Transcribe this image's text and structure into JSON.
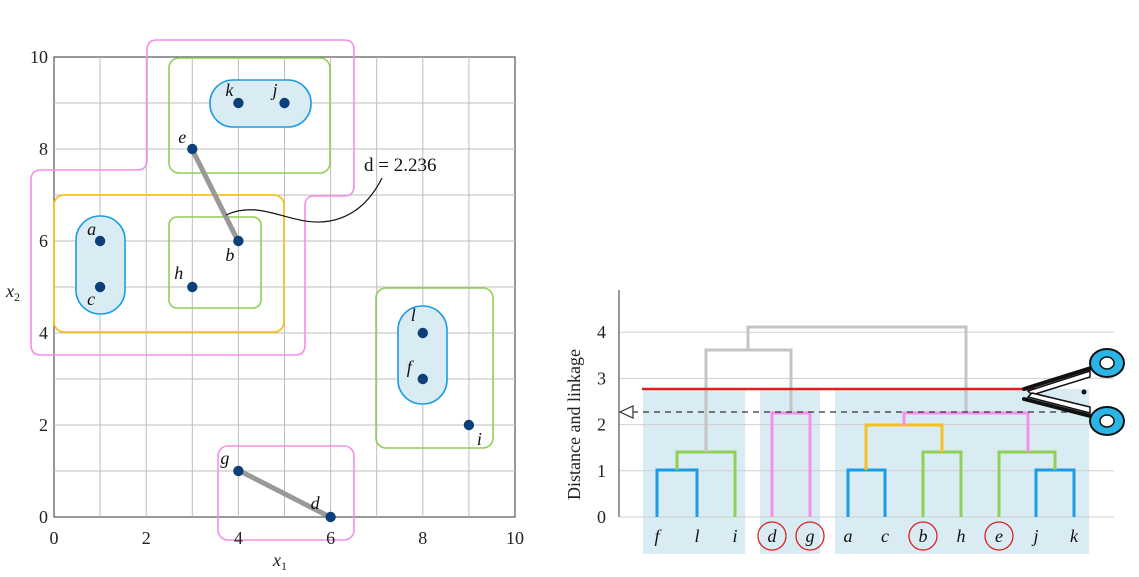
{
  "scatter": {
    "xlabel": "x",
    "xlabel_sub": "1",
    "ylabel": "x",
    "ylabel_sub": "2",
    "xticks": [
      "0",
      "2",
      "4",
      "6",
      "8",
      "10"
    ],
    "yticks": [
      "0",
      "2",
      "4",
      "6",
      "8",
      "10"
    ],
    "distance_annotation": "d = 2.236"
  },
  "dendrogram": {
    "ylabel": "Distance and linkage",
    "yticks": [
      "0",
      "1",
      "2",
      "3",
      "4"
    ],
    "leaves": [
      "f",
      "l",
      "i",
      "d",
      "g",
      "a",
      "c",
      "b",
      "h",
      "e",
      "j",
      "k"
    ],
    "circled_leaves": [
      "d",
      "g",
      "b",
      "e"
    ]
  },
  "chart_data": {
    "type": "scatter",
    "xlim": [
      0,
      10
    ],
    "ylim": [
      0,
      10
    ],
    "points": [
      {
        "label": "a",
        "x": 1,
        "y": 6
      },
      {
        "label": "b",
        "x": 4,
        "y": 6
      },
      {
        "label": "c",
        "x": 1,
        "y": 5
      },
      {
        "label": "d",
        "x": 6,
        "y": 0
      },
      {
        "label": "e",
        "x": 3,
        "y": 8
      },
      {
        "label": "f",
        "x": 8,
        "y": 3
      },
      {
        "label": "g",
        "x": 4,
        "y": 1
      },
      {
        "label": "h",
        "x": 3,
        "y": 5
      },
      {
        "label": "i",
        "x": 9,
        "y": 2
      },
      {
        "label": "j",
        "x": 5,
        "y": 9
      },
      {
        "label": "k",
        "x": 4,
        "y": 9
      },
      {
        "label": "l",
        "x": 8,
        "y": 4
      }
    ],
    "links": [
      [
        "e",
        "b"
      ],
      [
        "g",
        "d"
      ]
    ],
    "dendrogram_ylim": [
      0,
      4.5
    ],
    "cut_height": 2.75,
    "dashed_height": 2.25
  },
  "colors": {
    "point": "#0d3f7a",
    "blue": "#1a9be6",
    "green": "#8fcf55",
    "yellow": "#f6c125",
    "magenta": "#f58ee8",
    "gray": "#c4c4c4",
    "red": "#dd1f1f",
    "band": "#d9ecf3"
  },
  "icons": {
    "cut": "scissors-icon"
  }
}
